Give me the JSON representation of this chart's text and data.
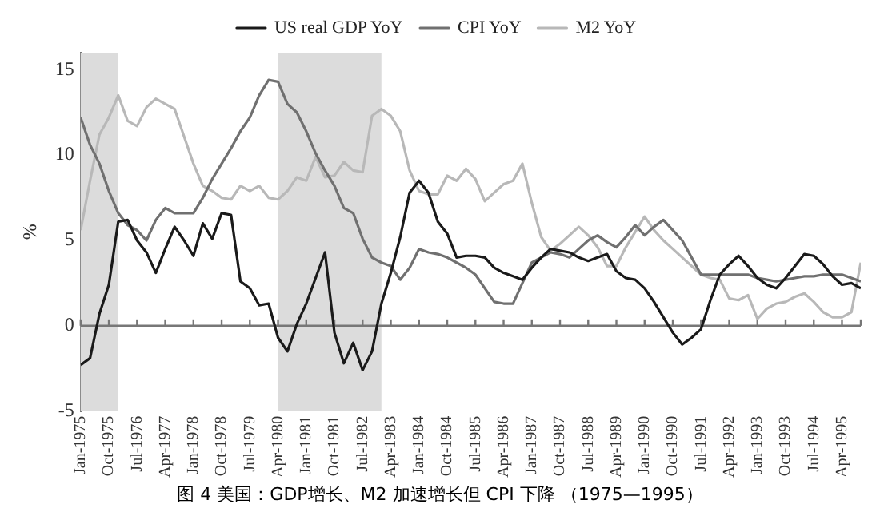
{
  "chart_data": {
    "type": "line",
    "ylabel": "%",
    "legend": "top",
    "grid": false,
    "marker": "none",
    "line_style": "solid",
    "annotations": [
      "图 4  美国：GDP增长、M2 加速增长但 CPI 下降 （1975—1995）"
    ],
    "x": [
      "1975-01",
      "1975-04",
      "1975-07",
      "1975-10",
      "1976-01",
      "1976-04",
      "1976-07",
      "1976-10",
      "1977-01",
      "1977-04",
      "1977-07",
      "1977-10",
      "1978-01",
      "1978-04",
      "1978-07",
      "1978-10",
      "1979-01",
      "1979-04",
      "1979-07",
      "1979-10",
      "1980-01",
      "1980-04",
      "1980-07",
      "1980-10",
      "1981-01",
      "1981-04",
      "1981-07",
      "1981-10",
      "1982-01",
      "1982-04",
      "1982-07",
      "1982-10",
      "1983-01",
      "1983-04",
      "1983-07",
      "1983-10",
      "1984-01",
      "1984-04",
      "1984-07",
      "1984-10",
      "1985-01",
      "1985-04",
      "1985-07",
      "1985-10",
      "1986-01",
      "1986-04",
      "1986-07",
      "1986-10",
      "1987-01",
      "1987-04",
      "1987-07",
      "1987-10",
      "1988-01",
      "1988-04",
      "1988-07",
      "1988-10",
      "1989-01",
      "1989-04",
      "1989-07",
      "1989-10",
      "1990-01",
      "1990-04",
      "1990-07",
      "1990-10",
      "1991-01",
      "1991-04",
      "1991-07",
      "1991-10",
      "1992-01",
      "1992-04",
      "1992-07",
      "1992-10",
      "1993-01",
      "1993-04",
      "1993-07",
      "1993-10",
      "1994-01",
      "1994-04",
      "1994-07",
      "1994-10",
      "1995-01",
      "1995-04",
      "1995-07",
      "1995-10"
    ],
    "xlim": [
      "1975-01",
      "1995-10"
    ],
    "xticks": [
      {
        "value": "1975-01",
        "label": "Jan-1975"
      },
      {
        "value": "1975-10",
        "label": "Oct-1975"
      },
      {
        "value": "1976-07",
        "label": "Jul-1976"
      },
      {
        "value": "1977-04",
        "label": "Apr-1977"
      },
      {
        "value": "1978-01",
        "label": "Jan-1978"
      },
      {
        "value": "1978-10",
        "label": "Oct-1978"
      },
      {
        "value": "1979-07",
        "label": "Jul-1979"
      },
      {
        "value": "1980-04",
        "label": "Apr-1980"
      },
      {
        "value": "1981-01",
        "label": "Jan-1981"
      },
      {
        "value": "1981-10",
        "label": "Oct-1981"
      },
      {
        "value": "1982-07",
        "label": "Jul-1982"
      },
      {
        "value": "1983-04",
        "label": "Apr-1983"
      },
      {
        "value": "1984-01",
        "label": "Jan-1984"
      },
      {
        "value": "1984-10",
        "label": "Oct-1984"
      },
      {
        "value": "1985-07",
        "label": "Jul-1985"
      },
      {
        "value": "1986-04",
        "label": "Apr-1986"
      },
      {
        "value": "1987-01",
        "label": "Jan-1987"
      },
      {
        "value": "1987-10",
        "label": "Oct-1987"
      },
      {
        "value": "1988-07",
        "label": "Jul-1988"
      },
      {
        "value": "1989-04",
        "label": "Apr-1989"
      },
      {
        "value": "1990-01",
        "label": "Jan-1990"
      },
      {
        "value": "1990-10",
        "label": "Oct-1990"
      },
      {
        "value": "1991-07",
        "label": "Jul-1991"
      },
      {
        "value": "1992-04",
        "label": "Apr-1992"
      },
      {
        "value": "1993-01",
        "label": "Jan-1993"
      },
      {
        "value": "1993-10",
        "label": "Oct-1993"
      },
      {
        "value": "1994-07",
        "label": "Jul-1994"
      },
      {
        "value": "1995-04",
        "label": "Apr-1995"
      }
    ],
    "ylim": [
      -5,
      16
    ],
    "yticks": [
      -5,
      0,
      5,
      10,
      15
    ],
    "ref_lines": [
      {
        "axis": "y",
        "value": 0,
        "color": "#777777"
      }
    ],
    "bands": [
      {
        "axis": "x",
        "from": "1975-01",
        "to": "1976-01",
        "color": "#dcdcdc"
      },
      {
        "axis": "x",
        "from": "1980-04",
        "to": "1983-01",
        "color": "#dcdcdc"
      }
    ],
    "series": [
      {
        "name": "US real GDP YoY",
        "color": "#1a1a1a",
        "values": [
          -2.3,
          -1.9,
          0.7,
          2.4,
          6.1,
          6.2,
          5.0,
          4.3,
          3.1,
          4.5,
          5.8,
          5.0,
          4.1,
          6.0,
          5.1,
          6.6,
          6.5,
          2.6,
          2.2,
          1.2,
          1.3,
          -0.7,
          -1.5,
          0.1,
          1.3,
          2.8,
          4.3,
          -0.4,
          -2.2,
          -1.0,
          -2.6,
          -1.5,
          1.3,
          3.1,
          5.2,
          7.8,
          8.5,
          7.8,
          6.1,
          5.4,
          4.0,
          4.1,
          4.1,
          4.0,
          3.4,
          3.1,
          2.9,
          2.7,
          3.4,
          4.0,
          4.5,
          4.4,
          4.3,
          4.0,
          3.8,
          4.0,
          4.2,
          3.2,
          2.8,
          2.7,
          2.2,
          1.4,
          0.5,
          -0.4,
          -1.1,
          -0.7,
          -0.2,
          1.5,
          3.0,
          3.6,
          4.1,
          3.5,
          2.8,
          2.4,
          2.2,
          2.8,
          3.5,
          4.2,
          4.1,
          3.6,
          2.9,
          2.4,
          2.5,
          2.2
        ]
      },
      {
        "name": "CPI YoY",
        "color": "#707070",
        "values": [
          12.2,
          10.6,
          9.5,
          7.9,
          6.6,
          5.9,
          5.6,
          5.0,
          6.2,
          6.9,
          6.6,
          6.6,
          6.6,
          7.5,
          8.6,
          9.5,
          10.4,
          11.4,
          12.2,
          13.5,
          14.4,
          14.3,
          13.0,
          12.5,
          11.4,
          10.1,
          9.1,
          8.2,
          6.9,
          6.6,
          5.1,
          4.0,
          3.7,
          3.5,
          2.7,
          3.4,
          4.5,
          4.3,
          4.2,
          4.0,
          3.7,
          3.4,
          3.0,
          2.2,
          1.4,
          1.3,
          1.3,
          2.5,
          3.7,
          4.0,
          4.3,
          4.2,
          4.0,
          4.5,
          5.0,
          5.3,
          4.9,
          4.6,
          5.2,
          5.9,
          5.3,
          5.8,
          6.2,
          5.6,
          5.0,
          4.0,
          3.0,
          3.0,
          3.0,
          3.0,
          3.0,
          3.0,
          2.8,
          2.7,
          2.6,
          2.7,
          2.8,
          2.9,
          2.9,
          3.0,
          3.0,
          3.0,
          2.8,
          2.6
        ]
      },
      {
        "name": "M2 YoY",
        "color": "#b8b8b8",
        "values": [
          5.6,
          8.5,
          11.2,
          12.2,
          13.5,
          12.0,
          11.7,
          12.8,
          13.3,
          13.0,
          12.7,
          11.1,
          9.5,
          8.2,
          7.9,
          7.5,
          7.4,
          8.2,
          7.9,
          8.2,
          7.5,
          7.4,
          7.9,
          8.7,
          8.5,
          9.9,
          8.7,
          8.8,
          9.6,
          9.1,
          9.0,
          12.3,
          12.7,
          12.3,
          11.4,
          9.1,
          7.9,
          7.7,
          7.7,
          8.8,
          8.5,
          9.2,
          8.6,
          7.3,
          7.8,
          8.3,
          8.5,
          9.5,
          7.2,
          5.2,
          4.4,
          4.8,
          5.3,
          5.8,
          5.3,
          4.6,
          3.5,
          3.5,
          4.6,
          5.5,
          6.4,
          5.6,
          5.0,
          4.5,
          4.0,
          3.5,
          3.0,
          2.8,
          2.7,
          1.6,
          1.5,
          1.8,
          0.4,
          1.0,
          1.3,
          1.4,
          1.7,
          1.9,
          1.4,
          0.8,
          0.5,
          0.5,
          0.8,
          3.7
        ]
      }
    ]
  }
}
